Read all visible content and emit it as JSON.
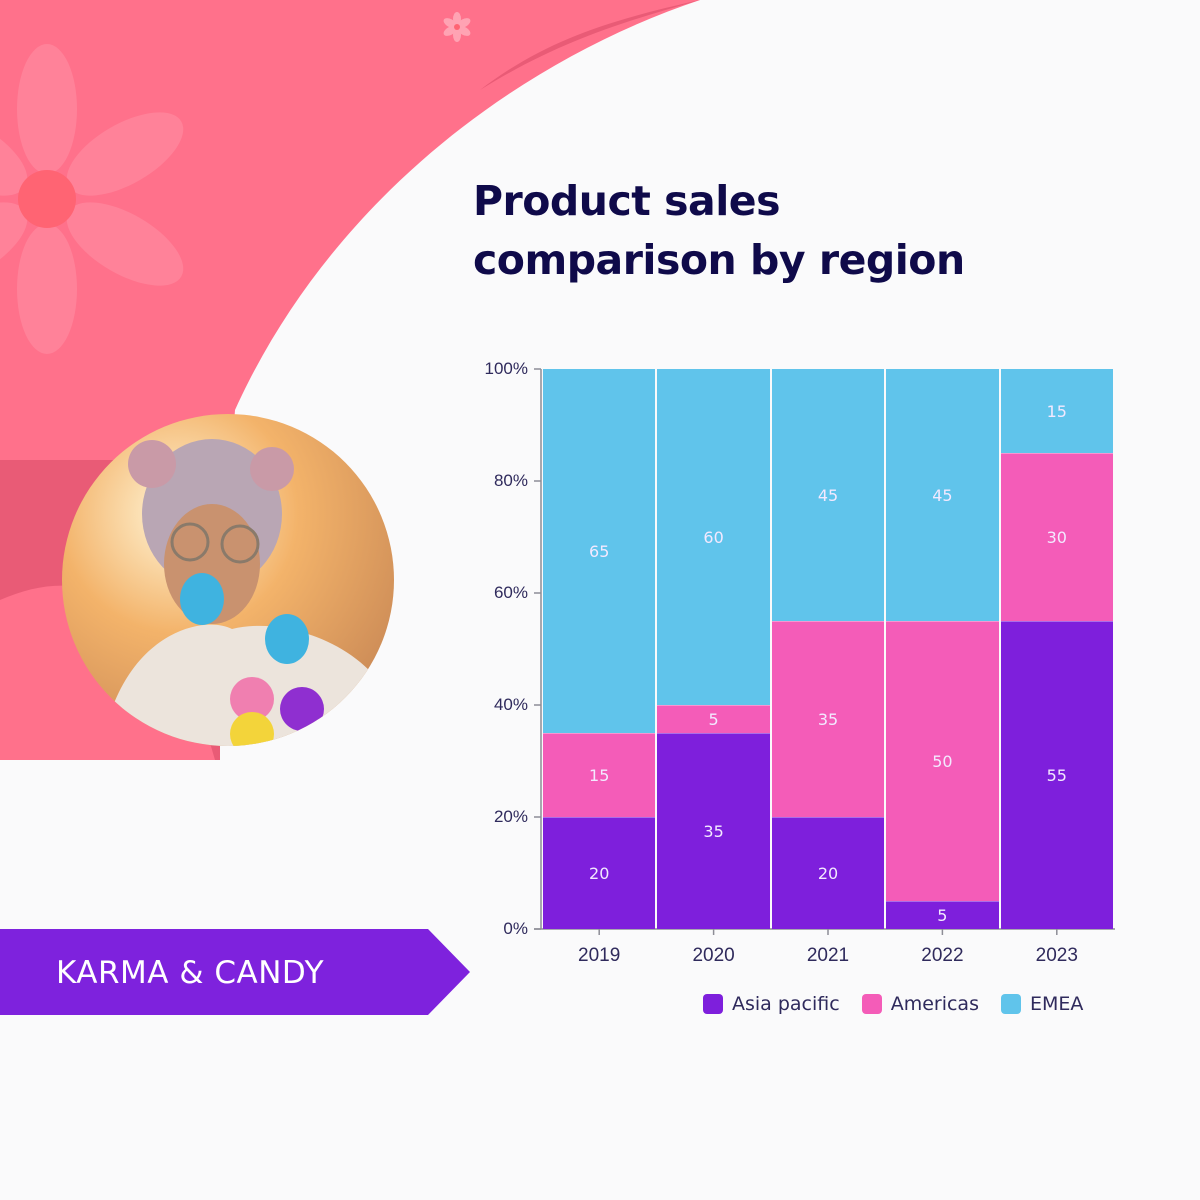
{
  "title": {
    "line1": "Product sales",
    "line2": "comparison by region"
  },
  "brand": {
    "label": "KARMA & CANDY",
    "color": "#7e22dd"
  },
  "colors": {
    "background_pink": "#ff718b",
    "background_pink_dark": "#e95b76",
    "flower_petal": "#ff8299",
    "flower_center": "#ff6473",
    "asia_pacific": "#7e1fdc",
    "americas": "#f45cb8",
    "emea": "#60c4eb",
    "title": "#0f0a4a"
  },
  "legend": [
    {
      "label": "Asia pacific",
      "color": "#7e1fdc"
    },
    {
      "label": "Americas",
      "color": "#f45cb8"
    },
    {
      "label": "EMEA",
      "color": "#60c4eb"
    }
  ],
  "axis": {
    "y_ticks": [
      "100%",
      "80%",
      "60%",
      "40%",
      "20%",
      "0%"
    ],
    "x_ticks": [
      "2019",
      "2020",
      "2021",
      "2022",
      "2023"
    ]
  },
  "chart_data": {
    "type": "bar",
    "stacked": true,
    "normalized": true,
    "title": "Product sales comparison by region",
    "xlabel": "",
    "ylabel": "",
    "ylim": [
      0,
      100
    ],
    "y_tick_labels": [
      "0%",
      "20%",
      "40%",
      "60%",
      "80%",
      "100%"
    ],
    "categories": [
      "2019",
      "2020",
      "2021",
      "2022",
      "2023"
    ],
    "series": [
      {
        "name": "Asia pacific",
        "color": "#7e1fdc",
        "values": [
          20,
          35,
          20,
          5,
          55
        ]
      },
      {
        "name": "Americas",
        "color": "#f45cb8",
        "values": [
          15,
          5,
          35,
          50,
          30
        ]
      },
      {
        "name": "EMEA",
        "color": "#60c4eb",
        "values": [
          65,
          60,
          45,
          45,
          15
        ]
      }
    ],
    "legend_position": "bottom",
    "grid": false,
    "data_labels": true
  }
}
